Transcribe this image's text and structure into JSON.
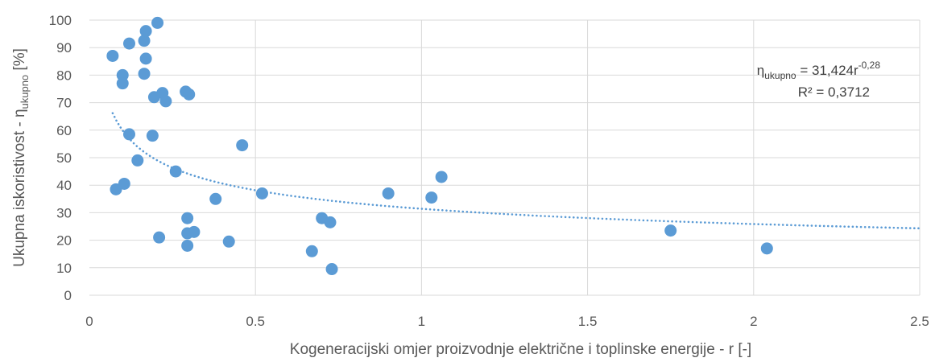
{
  "chart_data": {
    "type": "scatter",
    "xlabel": "Kogeneracijski omjer proizvodnje električne i toplinske energije - r [-]",
    "ylabel": {
      "prefix": "Ukupna iskoristivost - η",
      "subscript": "ukupno",
      "suffix": " [%]"
    },
    "xlim": [
      0,
      2.5
    ],
    "ylim": [
      0,
      100
    ],
    "x_ticks": [
      "0",
      "0.5",
      "1",
      "1.5",
      "2",
      "2.5"
    ],
    "y_ticks": [
      "0",
      "10",
      "20",
      "30",
      "40",
      "50",
      "60",
      "70",
      "80",
      "90",
      "100"
    ],
    "grid": true,
    "marker_color": "#5B9BD5",
    "trendline": {
      "type": "power",
      "coefficient": 31.424,
      "exponent": -0.28,
      "x_range": [
        0.07,
        2.5
      ],
      "color": "#5B9BD5",
      "style": "dotted",
      "equation": {
        "symbol": "η",
        "subscript": "ukupno",
        "rhs": " = 31,424r",
        "superscript": "-0,28"
      },
      "r_squared_text": "R² = 0,3712"
    },
    "points": [
      {
        "x": 0.07,
        "y": 87
      },
      {
        "x": 0.08,
        "y": 38.5
      },
      {
        "x": 0.1,
        "y": 80
      },
      {
        "x": 0.1,
        "y": 77
      },
      {
        "x": 0.105,
        "y": 40.5
      },
      {
        "x": 0.12,
        "y": 91.5
      },
      {
        "x": 0.12,
        "y": 58.5
      },
      {
        "x": 0.145,
        "y": 49
      },
      {
        "x": 0.165,
        "y": 92.5
      },
      {
        "x": 0.165,
        "y": 80.5
      },
      {
        "x": 0.17,
        "y": 96
      },
      {
        "x": 0.17,
        "y": 86
      },
      {
        "x": 0.19,
        "y": 58
      },
      {
        "x": 0.195,
        "y": 72
      },
      {
        "x": 0.205,
        "y": 99
      },
      {
        "x": 0.21,
        "y": 21
      },
      {
        "x": 0.22,
        "y": 73.5
      },
      {
        "x": 0.23,
        "y": 70.5
      },
      {
        "x": 0.26,
        "y": 45
      },
      {
        "x": 0.29,
        "y": 74
      },
      {
        "x": 0.295,
        "y": 28
      },
      {
        "x": 0.295,
        "y": 22.5
      },
      {
        "x": 0.295,
        "y": 18
      },
      {
        "x": 0.3,
        "y": 73
      },
      {
        "x": 0.315,
        "y": 23
      },
      {
        "x": 0.38,
        "y": 35
      },
      {
        "x": 0.42,
        "y": 19.5
      },
      {
        "x": 0.46,
        "y": 54.5
      },
      {
        "x": 0.52,
        "y": 37
      },
      {
        "x": 0.67,
        "y": 16
      },
      {
        "x": 0.7,
        "y": 28
      },
      {
        "x": 0.725,
        "y": 26.5
      },
      {
        "x": 0.73,
        "y": 9.5
      },
      {
        "x": 0.9,
        "y": 37
      },
      {
        "x": 1.03,
        "y": 35.5
      },
      {
        "x": 1.06,
        "y": 43
      },
      {
        "x": 1.75,
        "y": 23.5
      },
      {
        "x": 2.04,
        "y": 17
      }
    ]
  }
}
